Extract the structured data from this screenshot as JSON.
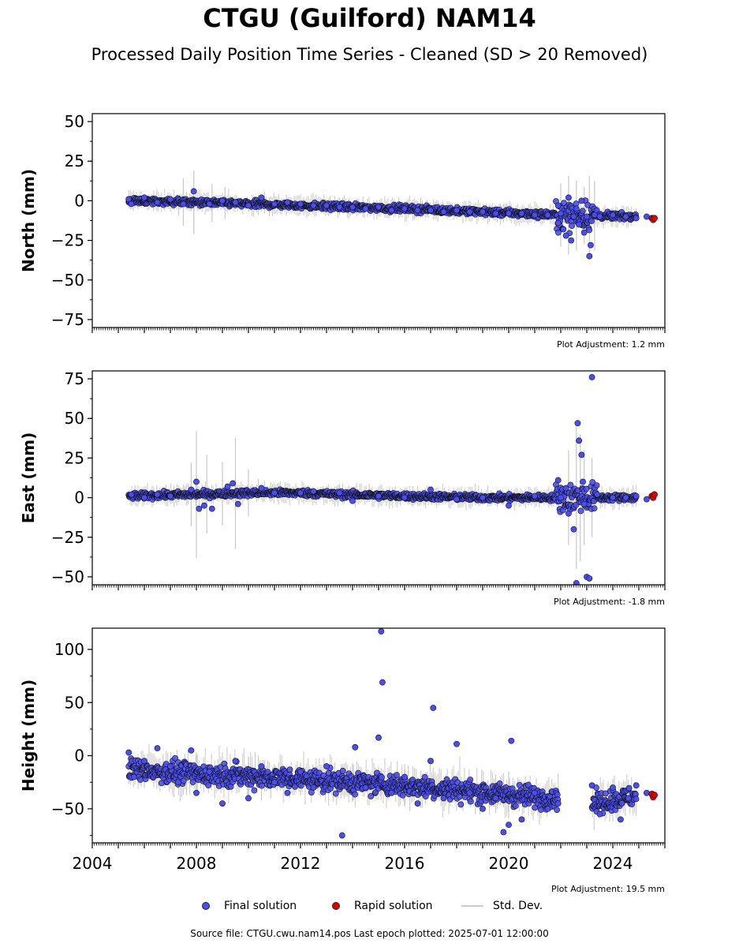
{
  "title": "CTGU (Guilford) NAM14",
  "subtitle": "Processed Daily Position Time Series - Cleaned (SD > 20 Removed)",
  "legend": {
    "final_label": "Final solution",
    "rapid_label": "Rapid solution",
    "stddev_label": "Std. Dev."
  },
  "footer": "Source file: CTGU.cwu.nam14.pos  Last epoch plotted: 2025-07-01 12:00:00",
  "colors": {
    "final": "#4a4ef0",
    "rapid": "#e00000",
    "stddev": "#c8c8c8",
    "edge": "#111111"
  },
  "chart_data": [
    {
      "type": "scatter",
      "ylabel": "North (mm)",
      "adjustment_label": "Plot Adjustment: 1.2 mm",
      "xlim": [
        2004.0,
        2026.0
      ],
      "ylim": [
        -80,
        55
      ],
      "yticks": [
        50,
        25,
        0,
        -25,
        -50,
        -75
      ],
      "xticks": [],
      "final_trend": [
        [
          2005.4,
          0
        ],
        [
          2008,
          -1
        ],
        [
          2012,
          -3
        ],
        [
          2016,
          -5
        ],
        [
          2019,
          -7
        ],
        [
          2021.9,
          -9
        ],
        [
          2024.9,
          -10
        ]
      ],
      "final_points": [
        [
          2005.4,
          1
        ],
        [
          2005.5,
          -2
        ],
        [
          2006,
          2
        ],
        [
          2006.5,
          -1
        ],
        [
          2007,
          1
        ],
        [
          2007.5,
          -2
        ],
        [
          2007.9,
          6
        ],
        [
          2008.5,
          -2
        ],
        [
          2009,
          0
        ],
        [
          2009.5,
          -1
        ],
        [
          2010,
          -3
        ],
        [
          2010.5,
          2
        ],
        [
          2011,
          -2
        ],
        [
          2011.5,
          -1
        ],
        [
          2012,
          -2
        ],
        [
          2012.5,
          -3
        ],
        [
          2013,
          -3
        ],
        [
          2013.5,
          -4
        ],
        [
          2014,
          -4
        ],
        [
          2014.5,
          -5
        ],
        [
          2015,
          -4
        ],
        [
          2015.5,
          -6
        ],
        [
          2016,
          -5
        ],
        [
          2016.5,
          -6
        ],
        [
          2017,
          -6
        ],
        [
          2017.5,
          -7
        ],
        [
          2018,
          -6
        ],
        [
          2018.5,
          -7
        ],
        [
          2019,
          -7
        ],
        [
          2019.5,
          -8
        ],
        [
          2020,
          -8
        ],
        [
          2020.5,
          -8
        ],
        [
          2021,
          -9
        ],
        [
          2021.5,
          -9
        ],
        [
          2021.9,
          -3
        ],
        [
          2021.9,
          -14
        ],
        [
          2022.0,
          -8
        ],
        [
          2022.1,
          -18
        ],
        [
          2022.2,
          -22
        ],
        [
          2022.3,
          2
        ],
        [
          2022.4,
          -25
        ],
        [
          2022.5,
          -10
        ],
        [
          2022.6,
          -5
        ],
        [
          2022.7,
          -15
        ],
        [
          2022.8,
          0
        ],
        [
          2022.9,
          -20
        ],
        [
          2023.0,
          -10
        ],
        [
          2023.1,
          -35
        ],
        [
          2023.15,
          -28
        ],
        [
          2023.3,
          -9
        ],
        [
          2023.5,
          -10
        ],
        [
          2024,
          -9
        ],
        [
          2024.5,
          -10
        ],
        [
          2024.9,
          -11
        ],
        [
          2025.3,
          -10
        ]
      ],
      "rapid_points": [
        [
          2025.5,
          -11
        ],
        [
          2025.55,
          -12
        ],
        [
          2025.6,
          -11
        ]
      ],
      "stddev_bars": [
        [
          2007.5,
          15
        ],
        [
          2007.9,
          20
        ],
        [
          2008.6,
          12
        ],
        [
          2009.1,
          10
        ],
        [
          2022.0,
          20
        ],
        [
          2022.3,
          25
        ],
        [
          2022.6,
          22
        ],
        [
          2022.9,
          18
        ],
        [
          2023.1,
          25
        ],
        [
          2023.3,
          22
        ]
      ]
    },
    {
      "type": "scatter",
      "ylabel": "East (mm)",
      "adjustment_label": "Plot Adjustment: -1.8 mm",
      "xlim": [
        2004.0,
        2026.0
      ],
      "ylim": [
        -55,
        80
      ],
      "yticks": [
        75,
        50,
        25,
        0,
        -25,
        -50
      ],
      "xticks": [],
      "final_trend": [
        [
          2005.4,
          1
        ],
        [
          2008,
          2
        ],
        [
          2010,
          3
        ],
        [
          2012,
          3
        ],
        [
          2013.5,
          2
        ],
        [
          2016,
          1
        ],
        [
          2019,
          0
        ],
        [
          2021.9,
          0
        ],
        [
          2024.9,
          0
        ]
      ],
      "final_points": [
        [
          2005.5,
          2
        ],
        [
          2006,
          0
        ],
        [
          2006.5,
          2
        ],
        [
          2007,
          1
        ],
        [
          2007.8,
          5
        ],
        [
          2008.0,
          10
        ],
        [
          2008.1,
          -7
        ],
        [
          2008.3,
          -5
        ],
        [
          2008.6,
          -7
        ],
        [
          2009.2,
          7
        ],
        [
          2009.4,
          9
        ],
        [
          2009.6,
          -4
        ],
        [
          2010.5,
          6
        ],
        [
          2011,
          3
        ],
        [
          2012,
          3
        ],
        [
          2012.5,
          4
        ],
        [
          2013.5,
          3
        ],
        [
          2014,
          -2
        ],
        [
          2015,
          1
        ],
        [
          2016,
          0
        ],
        [
          2017,
          5
        ],
        [
          2018,
          -1
        ],
        [
          2019,
          0
        ],
        [
          2020,
          -5
        ],
        [
          2021,
          1
        ],
        [
          2021.9,
          11
        ],
        [
          2022.0,
          0
        ],
        [
          2022.2,
          6
        ],
        [
          2022.3,
          -10
        ],
        [
          2022.5,
          -20
        ],
        [
          2022.6,
          -54
        ],
        [
          2022.65,
          47
        ],
        [
          2022.7,
          36
        ],
        [
          2022.8,
          27
        ],
        [
          2022.85,
          10
        ],
        [
          2022.9,
          -4
        ],
        [
          2023.0,
          -50
        ],
        [
          2023.1,
          -51
        ],
        [
          2023.2,
          76
        ],
        [
          2023.4,
          2
        ],
        [
          2024,
          0
        ],
        [
          2024.5,
          0
        ],
        [
          2024.9,
          1
        ],
        [
          2025.3,
          -1
        ]
      ],
      "rapid_points": [
        [
          2025.5,
          1
        ],
        [
          2025.55,
          0
        ],
        [
          2025.6,
          2
        ]
      ],
      "stddev_bars": [
        [
          2007.8,
          20
        ],
        [
          2008.0,
          40
        ],
        [
          2008.4,
          25
        ],
        [
          2009.0,
          20
        ],
        [
          2009.5,
          35
        ],
        [
          2010.0,
          15
        ],
        [
          2022.3,
          30
        ],
        [
          2022.6,
          45
        ],
        [
          2022.75,
          40
        ],
        [
          2022.9,
          30
        ],
        [
          2023.2,
          25
        ]
      ]
    },
    {
      "type": "scatter",
      "ylabel": "Height (mm)",
      "adjustment_label": "Plot Adjustment: 19.5 mm",
      "xlim": [
        2004.0,
        2026.0
      ],
      "ylim": [
        -82,
        120
      ],
      "yticks": [
        100,
        50,
        0,
        -50
      ],
      "xticks": [
        "2004",
        "2008",
        "2012",
        "2016",
        "2020",
        "2024"
      ],
      "gap": [
        2021.9,
        2023.2
      ],
      "final_trend": [
        [
          2005.4,
          -13
        ],
        [
          2008,
          -17
        ],
        [
          2010,
          -19
        ],
        [
          2012,
          -22
        ],
        [
          2014,
          -25
        ],
        [
          2016,
          -28
        ],
        [
          2018,
          -32
        ],
        [
          2020,
          -37
        ],
        [
          2021.9,
          -40
        ],
        [
          2023.2,
          -45
        ],
        [
          2024.9,
          -38
        ]
      ],
      "final_points": [
        [
          2005.4,
          3
        ],
        [
          2005.6,
          -20
        ],
        [
          2006,
          -5
        ],
        [
          2006.5,
          7
        ],
        [
          2007,
          -10
        ],
        [
          2007.3,
          -25
        ],
        [
          2007.8,
          5
        ],
        [
          2008,
          -35
        ],
        [
          2008.5,
          -15
        ],
        [
          2009,
          -45
        ],
        [
          2009.5,
          -5
        ],
        [
          2010,
          -40
        ],
        [
          2010.5,
          -10
        ],
        [
          2011,
          -25
        ],
        [
          2011.5,
          -35
        ],
        [
          2012,
          -15
        ],
        [
          2012.5,
          -30
        ],
        [
          2013,
          -10
        ],
        [
          2013.6,
          -75
        ],
        [
          2014.1,
          8
        ],
        [
          2014.5,
          -30
        ],
        [
          2015.0,
          17
        ],
        [
          2015.1,
          117
        ],
        [
          2015.15,
          69
        ],
        [
          2015.5,
          -35
        ],
        [
          2016,
          -20
        ],
        [
          2016.5,
          -45
        ],
        [
          2017,
          -5
        ],
        [
          2017.1,
          45
        ],
        [
          2017.5,
          -40
        ],
        [
          2018,
          11
        ],
        [
          2018.5,
          -35
        ],
        [
          2019,
          -50
        ],
        [
          2019.5,
          -40
        ],
        [
          2019.8,
          -72
        ],
        [
          2020.0,
          -65
        ],
        [
          2020.1,
          14
        ],
        [
          2020.5,
          -60
        ],
        [
          2021,
          -35
        ],
        [
          2021.5,
          -50
        ],
        [
          2021.9,
          -45
        ],
        [
          2023.2,
          -28
        ],
        [
          2023.5,
          -55
        ],
        [
          2024,
          -30
        ],
        [
          2024.3,
          -60
        ],
        [
          2024.6,
          -40
        ],
        [
          2024.9,
          -28
        ],
        [
          2025.3,
          -35
        ]
      ],
      "rapid_points": [
        [
          2025.5,
          -36
        ],
        [
          2025.55,
          -39
        ],
        [
          2025.6,
          -37
        ]
      ],
      "stddev_bars": [
        [
          2006,
          15
        ],
        [
          2008,
          20
        ],
        [
          2010,
          18
        ],
        [
          2012,
          15
        ],
        [
          2014,
          18
        ],
        [
          2015.1,
          15
        ],
        [
          2016,
          20
        ],
        [
          2017.1,
          12
        ],
        [
          2019.5,
          18
        ],
        [
          2020,
          22
        ],
        [
          2024,
          20
        ]
      ]
    }
  ]
}
